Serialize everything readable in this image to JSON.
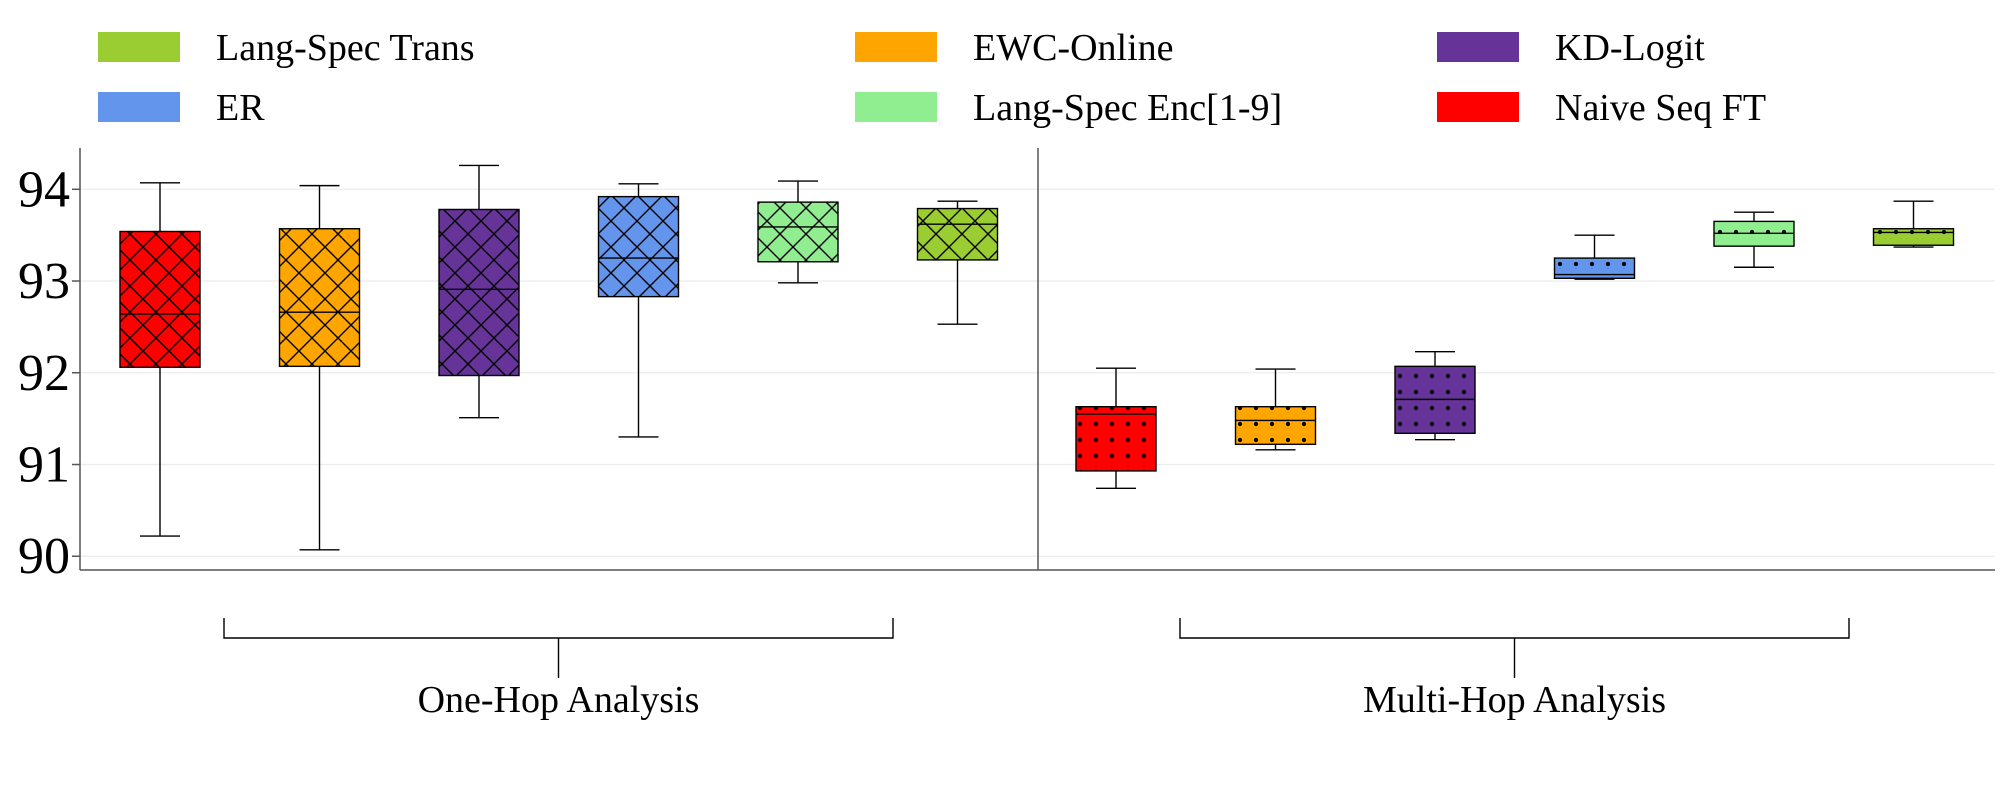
{
  "chart_data": {
    "type": "box",
    "ylim": [
      89.85,
      94.45
    ],
    "yticks": [
      90,
      91,
      92,
      93,
      94
    ],
    "grid": true,
    "legend_placement": "top",
    "legend": [
      {
        "label": "Lang-Spec Trans",
        "color": "#9ACD32"
      },
      {
        "label": "ER",
        "color": "#6495ED"
      },
      {
        "label": "EWC-Online",
        "color": "#FFA500"
      },
      {
        "label": "Lang-Spec Enc[1-9]",
        "color": "#90EE90"
      },
      {
        "label": "KD-Logit",
        "color": "#663399"
      },
      {
        "label": "Naive Seq FT",
        "color": "#FF0000"
      }
    ],
    "groups": [
      {
        "name": "One-Hop Analysis",
        "hatch": "crosshatch",
        "boxes": [
          {
            "method": "Naive Seq FT",
            "color": "#FF0000",
            "whislo": 90.22,
            "q1": 92.06,
            "med": 92.64,
            "q3": 93.54,
            "whishi": 94.07
          },
          {
            "method": "EWC-Online",
            "color": "#FFA500",
            "whislo": 90.07,
            "q1": 92.07,
            "med": 92.66,
            "q3": 93.57,
            "whishi": 94.04
          },
          {
            "method": "KD-Logit",
            "color": "#663399",
            "whislo": 91.51,
            "q1": 91.97,
            "med": 92.91,
            "q3": 93.78,
            "whishi": 94.26
          },
          {
            "method": "ER",
            "color": "#6495ED",
            "whislo": 91.3,
            "q1": 92.83,
            "med": 93.25,
            "q3": 93.92,
            "whishi": 94.06
          },
          {
            "method": "Lang-Spec Enc[1-9]",
            "color": "#90EE90",
            "whislo": 92.98,
            "q1": 93.21,
            "med": 93.59,
            "q3": 93.86,
            "whishi": 94.09
          },
          {
            "method": "Lang-Spec Trans",
            "color": "#9ACD32",
            "whislo": 92.53,
            "q1": 93.23,
            "med": 93.62,
            "q3": 93.79,
            "whishi": 93.87
          }
        ]
      },
      {
        "name": "Multi-Hop Analysis",
        "hatch": "dots",
        "boxes": [
          {
            "method": "Naive Seq FT",
            "color": "#FF0000",
            "whislo": 90.74,
            "q1": 90.93,
            "med": 91.55,
            "q3": 91.63,
            "whishi": 92.05
          },
          {
            "method": "EWC-Online",
            "color": "#FFA500",
            "whislo": 91.16,
            "q1": 91.22,
            "med": 91.48,
            "q3": 91.63,
            "whishi": 92.04
          },
          {
            "method": "KD-Logit",
            "color": "#663399",
            "whislo": 91.27,
            "q1": 91.34,
            "med": 91.71,
            "q3": 92.07,
            "whishi": 92.23
          },
          {
            "method": "ER",
            "color": "#6495ED",
            "whislo": 93.02,
            "q1": 93.03,
            "med": 93.07,
            "q3": 93.25,
            "whishi": 93.5
          },
          {
            "method": "Lang-Spec Enc[1-9]",
            "color": "#90EE90",
            "whislo": 93.15,
            "q1": 93.38,
            "med": 93.52,
            "q3": 93.65,
            "whishi": 93.75
          },
          {
            "method": "Lang-Spec Trans",
            "color": "#9ACD32",
            "whislo": 93.37,
            "q1": 93.39,
            "med": 93.53,
            "q3": 93.57,
            "whishi": 93.87
          }
        ]
      }
    ]
  }
}
